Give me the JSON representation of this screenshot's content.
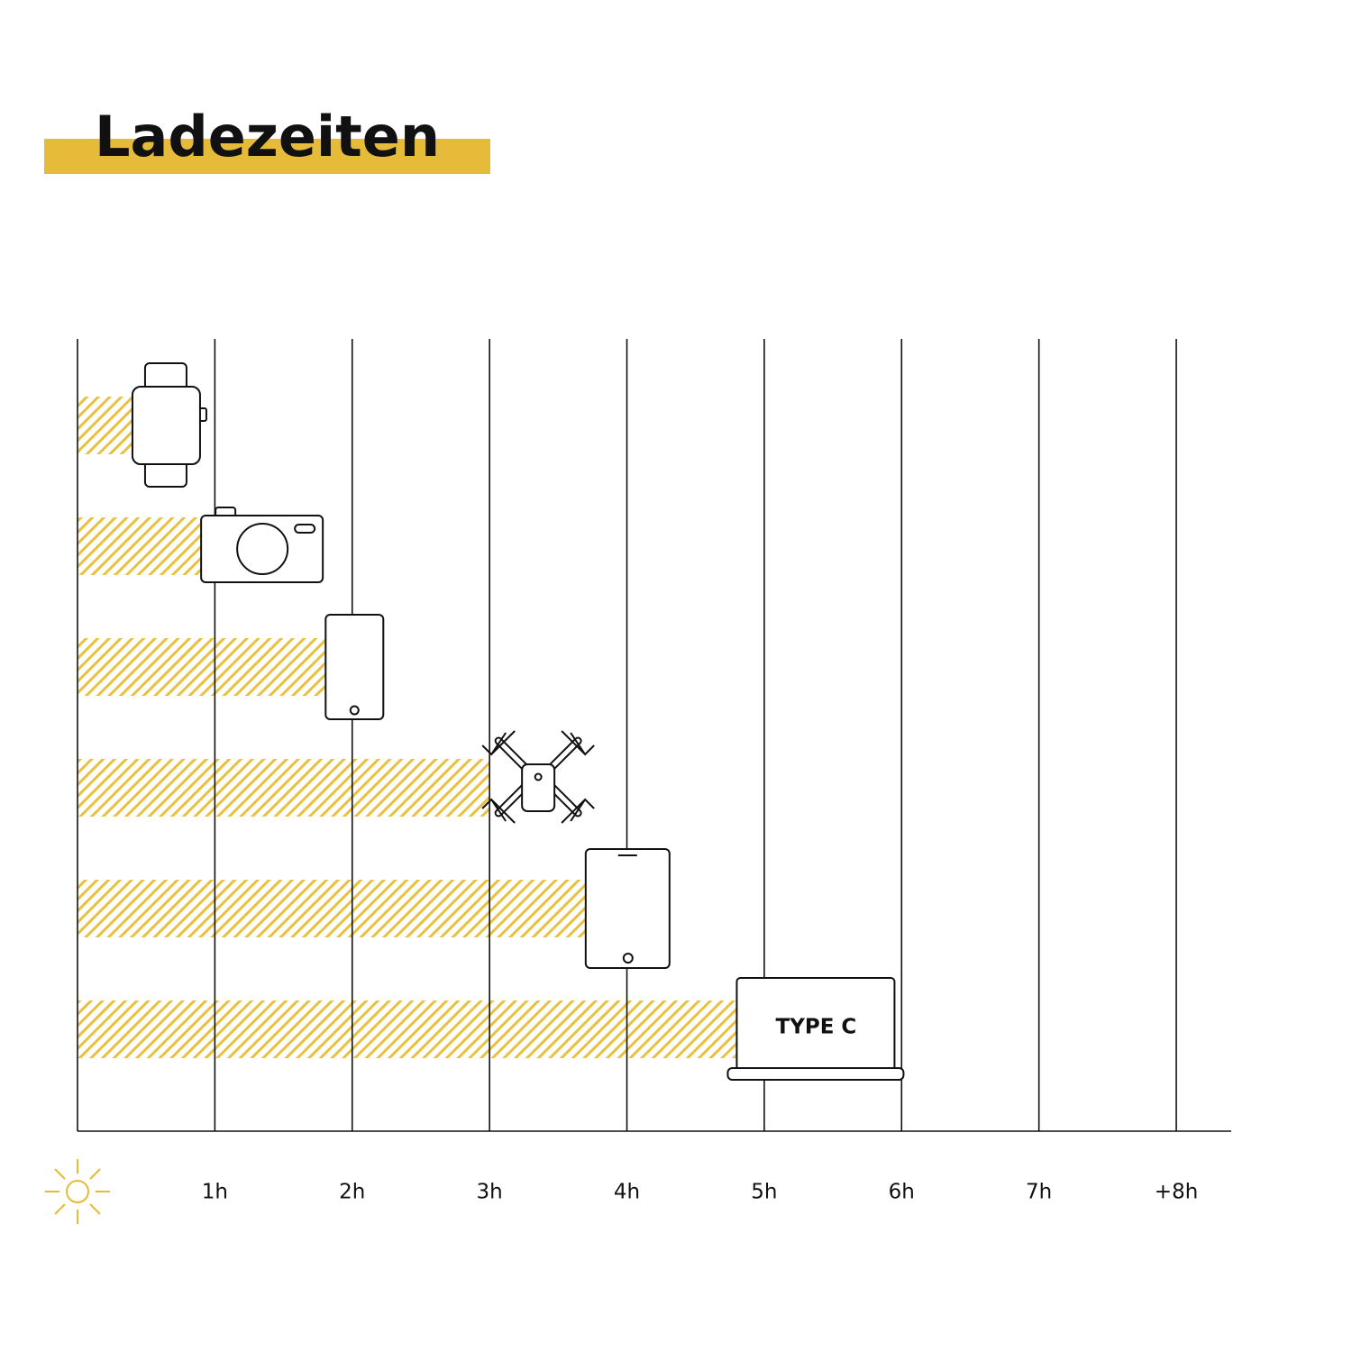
{
  "chart_data": {
    "type": "bar",
    "orientation": "horizontal",
    "title": "Ladezeiten",
    "categories": [
      null,
      null,
      null,
      null,
      null,
      null
    ],
    "values": [
      0.4,
      0.9,
      1.8,
      3.0,
      3.7,
      4.8
    ],
    "color": "#e8c13f",
    "xlim": [
      0,
      8.4
    ],
    "xticks": [
      {
        "value": 1,
        "label": "1h"
      },
      {
        "value": 2,
        "label": "2h"
      },
      {
        "value": 3,
        "label": "3h"
      },
      {
        "value": 4,
        "label": "4h"
      },
      {
        "value": 5,
        "label": "5h"
      },
      {
        "value": 6,
        "label": "6h"
      },
      {
        "value": 7,
        "label": "7h"
      },
      {
        "value": 8,
        "label": "+8h"
      }
    ],
    "grid": true,
    "annotation": "TYPE C"
  }
}
